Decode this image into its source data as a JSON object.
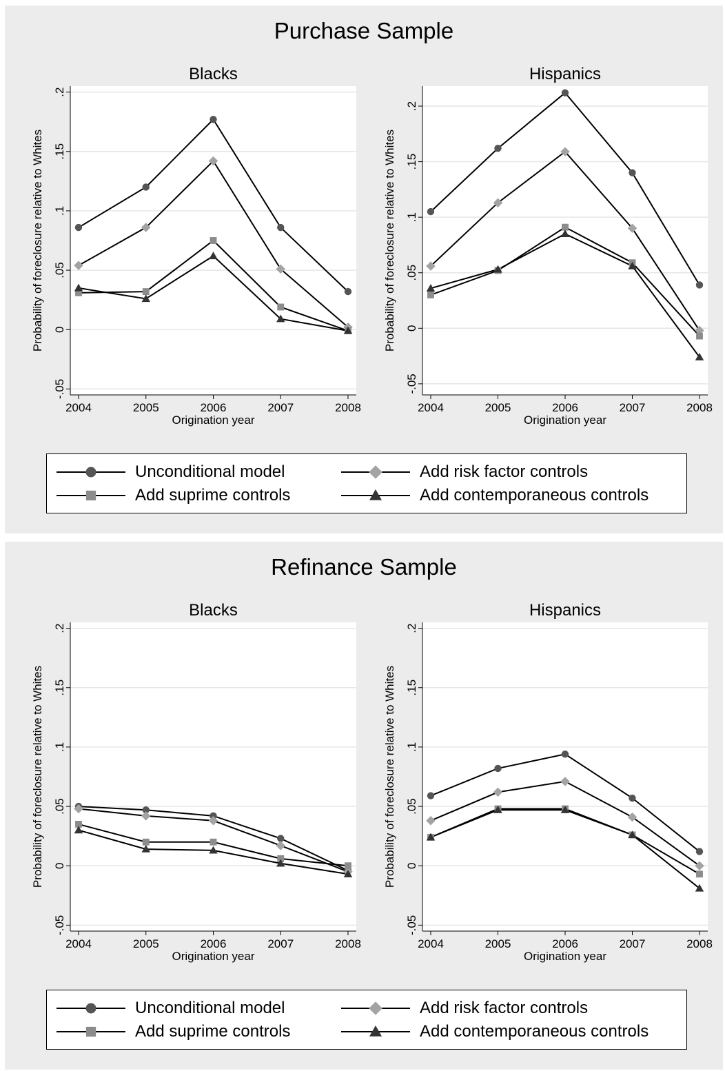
{
  "colors": {
    "unconditional": "#555555",
    "risk": "#a3a3a3",
    "subprime": "#8c8c8c",
    "contemporaneous": "#333333",
    "line": "#000000",
    "grid": "#e6e6e6",
    "panel_bg": "#ececec"
  },
  "legend": [
    {
      "key": "unconditional",
      "marker": "circle",
      "label": "Unconditional model"
    },
    {
      "key": "risk",
      "marker": "diamond",
      "label": "Add risk factor controls"
    },
    {
      "key": "subprime",
      "marker": "square",
      "label": "Add suprime controls"
    },
    {
      "key": "contemporaneous",
      "marker": "triangle",
      "label": "Add contemporaneous controls"
    }
  ],
  "panels": [
    {
      "title": "Purchase Sample"
    },
    {
      "title": "Refinance Sample"
    }
  ],
  "chart_data": [
    {
      "type": "line",
      "panel": "Purchase Sample",
      "title": "Blacks",
      "xlabel": "Origination year",
      "ylabel": "Probability of foreclosure relative to Whites",
      "x": [
        2004,
        2005,
        2006,
        2007,
        2008
      ],
      "ylim": [
        -0.055,
        0.205
      ],
      "yticks": [
        -0.05,
        0,
        0.05,
        0.1,
        0.15,
        0.2
      ],
      "ytick_labels": [
        "-.05",
        "0",
        ".05",
        ".1",
        ".15",
        ".2"
      ],
      "series": [
        {
          "key": "unconditional",
          "name": "Unconditional model",
          "values": [
            0.086,
            0.12,
            0.177,
            0.086,
            0.032
          ]
        },
        {
          "key": "risk",
          "name": "Add risk factor controls",
          "values": [
            0.054,
            0.086,
            0.142,
            0.051,
            0.002
          ]
        },
        {
          "key": "subprime",
          "name": "Add suprime controls",
          "values": [
            0.031,
            0.032,
            0.075,
            0.019,
            -0.001
          ]
        },
        {
          "key": "contemporaneous",
          "name": "Add contemporaneous controls",
          "values": [
            0.035,
            0.026,
            0.062,
            0.009,
            -0.001
          ]
        }
      ]
    },
    {
      "type": "line",
      "panel": "Purchase Sample",
      "title": "Hispanics",
      "xlabel": "Origination year",
      "ylabel": "Probability of foreclosure relative to Whites",
      "x": [
        2004,
        2005,
        2006,
        2007,
        2008
      ],
      "ylim": [
        -0.06,
        0.218
      ],
      "yticks": [
        -0.05,
        0,
        0.05,
        0.1,
        0.15,
        0.2
      ],
      "ytick_labels": [
        "-.05",
        "0",
        ".05",
        ".1",
        ".15",
        ".2"
      ],
      "series": [
        {
          "key": "unconditional",
          "name": "Unconditional model",
          "values": [
            0.105,
            0.162,
            0.212,
            0.14,
            0.039
          ]
        },
        {
          "key": "risk",
          "name": "Add risk factor controls",
          "values": [
            0.056,
            0.113,
            0.159,
            0.09,
            -0.002
          ]
        },
        {
          "key": "subprime",
          "name": "Add suprime controls",
          "values": [
            0.03,
            0.052,
            0.091,
            0.059,
            -0.007
          ]
        },
        {
          "key": "contemporaneous",
          "name": "Add contemporaneous controls",
          "values": [
            0.036,
            0.053,
            0.085,
            0.056,
            -0.026
          ]
        }
      ]
    },
    {
      "type": "line",
      "panel": "Refinance Sample",
      "title": "Blacks",
      "xlabel": "Origination year",
      "ylabel": "Probability of foreclosure relative to Whites",
      "x": [
        2004,
        2005,
        2006,
        2007,
        2008
      ],
      "ylim": [
        -0.055,
        0.205
      ],
      "yticks": [
        -0.05,
        0,
        0.05,
        0.1,
        0.15,
        0.2
      ],
      "ytick_labels": [
        "-.05",
        "0",
        ".05",
        ".1",
        ".15",
        ".2"
      ],
      "series": [
        {
          "key": "unconditional",
          "name": "Unconditional model",
          "values": [
            0.05,
            0.047,
            0.042,
            0.023,
            -0.004
          ]
        },
        {
          "key": "risk",
          "name": "Add risk factor controls",
          "values": [
            0.048,
            0.042,
            0.038,
            0.017,
            -0.005
          ]
        },
        {
          "key": "subprime",
          "name": "Add suprime controls",
          "values": [
            0.035,
            0.02,
            0.02,
            0.006,
            0.0
          ]
        },
        {
          "key": "contemporaneous",
          "name": "Add contemporaneous controls",
          "values": [
            0.03,
            0.014,
            0.013,
            0.002,
            -0.007
          ]
        }
      ]
    },
    {
      "type": "line",
      "panel": "Refinance Sample",
      "title": "Hispanics",
      "xlabel": "Origination year",
      "ylabel": "Probability of foreclosure relative to Whites",
      "x": [
        2004,
        2005,
        2006,
        2007,
        2008
      ],
      "ylim": [
        -0.055,
        0.205
      ],
      "yticks": [
        -0.05,
        0,
        0.05,
        0.1,
        0.15,
        0.2
      ],
      "ytick_labels": [
        "-.05",
        "0",
        ".05",
        ".1",
        ".15",
        ".2"
      ],
      "series": [
        {
          "key": "unconditional",
          "name": "Unconditional model",
          "values": [
            0.059,
            0.082,
            0.094,
            0.057,
            0.012
          ]
        },
        {
          "key": "risk",
          "name": "Add risk factor controls",
          "values": [
            0.038,
            0.062,
            0.071,
            0.041,
            0.0
          ]
        },
        {
          "key": "subprime",
          "name": "Add suprime controls",
          "values": [
            0.024,
            0.048,
            0.048,
            0.026,
            -0.007
          ]
        },
        {
          "key": "contemporaneous",
          "name": "Add contemporaneous controls",
          "values": [
            0.024,
            0.047,
            0.047,
            0.026,
            -0.019
          ]
        }
      ]
    }
  ]
}
